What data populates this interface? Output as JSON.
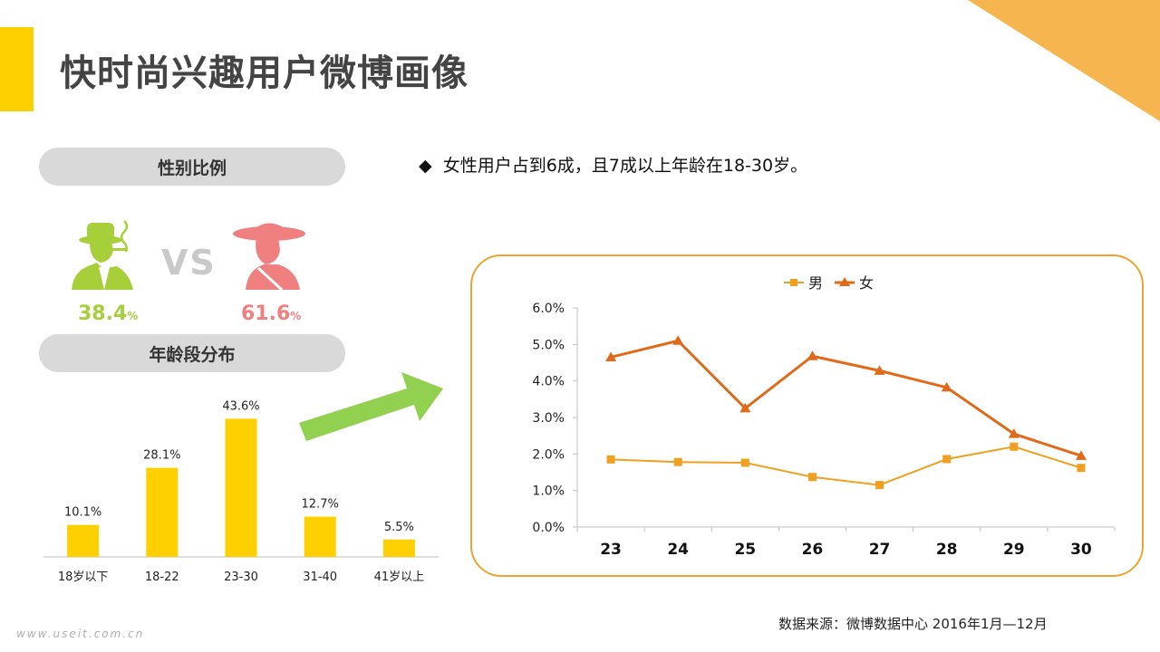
{
  "title": "快时尚兴趣用户微博画像",
  "gender": {
    "heading": "性别比例",
    "vs": "VS",
    "male": {
      "value": "38.4",
      "unit": "%",
      "color": "#A6CF3A",
      "icon": "man-smoking-icon"
    },
    "female": {
      "value": "61.6",
      "unit": "%",
      "color": "#F0807F",
      "icon": "woman-hat-icon"
    }
  },
  "age_heading": "年龄段分布",
  "bullet_text": "女性用户占到6成，且7成以上年龄在18-30岁。",
  "source": "数据来源：微博数据中心 2016年1月—12月",
  "watermark": "www.useit.com.cn",
  "colors": {
    "accent": "#FFD000",
    "bar": "#FFD000",
    "male_line": "#F0A020",
    "female_line": "#E06A1A",
    "arrow": "#92D050",
    "frame": "#E8A530"
  },
  "chart_data": [
    {
      "type": "bar",
      "categories": [
        "18岁以下",
        "18-22",
        "23-30",
        "31-40",
        "41岁以上"
      ],
      "values": [
        10.1,
        28.1,
        43.6,
        12.7,
        5.5
      ],
      "labels": [
        "10.1%",
        "28.1%",
        "43.6%",
        "12.7%",
        "5.5%"
      ],
      "ylim": [
        0,
        50
      ]
    },
    {
      "type": "line",
      "x": [
        "23",
        "24",
        "25",
        "26",
        "27",
        "28",
        "29",
        "30"
      ],
      "series": [
        {
          "name": "男",
          "values": [
            1.85,
            1.78,
            1.76,
            1.37,
            1.15,
            1.86,
            2.2,
            1.62
          ]
        },
        {
          "name": "女",
          "values": [
            4.65,
            5.1,
            3.25,
            4.68,
            4.28,
            3.82,
            2.55,
            1.95
          ]
        }
      ],
      "yticks": [
        "0.0%",
        "1.0%",
        "2.0%",
        "3.0%",
        "4.0%",
        "5.0%",
        "6.0%"
      ],
      "ylim": [
        0,
        6
      ],
      "legend": "top"
    }
  ]
}
